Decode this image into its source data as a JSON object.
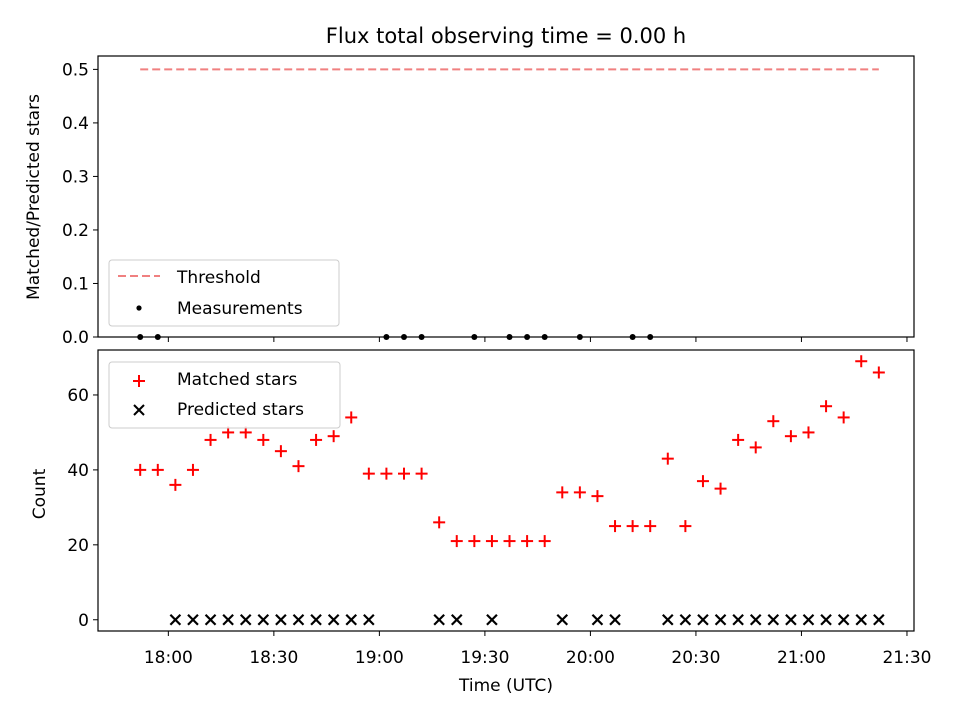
{
  "colors": {
    "threshold": "#f08080",
    "measurement": "#000000",
    "matched": "#ff0000",
    "predicted": "#000000"
  },
  "chart_data": [
    {
      "type": "scatter",
      "title": "Flux total observing time = 0.00 h",
      "xlabel": "",
      "ylabel": "Matched/Predicted stars",
      "ylim": [
        0,
        0.525
      ],
      "yticks": [
        "0.0",
        "0.1",
        "0.2",
        "0.3",
        "0.4",
        "0.5"
      ],
      "grid": false,
      "legend": "lower-left",
      "threshold": {
        "name": "Threshold",
        "y": 0.5,
        "x_start": "17:52",
        "x_end": "21:22"
      },
      "series": [
        {
          "name": "Measurements",
          "x": [
            "17:52",
            "17:57",
            "19:02",
            "19:07",
            "19:12",
            "19:27",
            "19:37",
            "19:42",
            "19:47",
            "19:57",
            "20:12",
            "20:17"
          ],
          "y": [
            0,
            0,
            0,
            0,
            0,
            0,
            0,
            0,
            0,
            0,
            0,
            0
          ]
        }
      ]
    },
    {
      "type": "scatter",
      "title": "",
      "xlabel": "Time (UTC)",
      "ylabel": "Count",
      "xlim": [
        "17:40",
        "21:32"
      ],
      "xticks": [
        "18:00",
        "18:30",
        "19:00",
        "19:30",
        "20:00",
        "20:30",
        "21:00",
        "21:30"
      ],
      "ylim": [
        -3,
        72
      ],
      "yticks": [
        "0",
        "20",
        "40",
        "60"
      ],
      "grid": false,
      "legend": "upper-left",
      "series": [
        {
          "name": "Matched stars",
          "x": [
            "17:52",
            "17:57",
            "18:02",
            "18:07",
            "18:12",
            "18:17",
            "18:22",
            "18:27",
            "18:32",
            "18:37",
            "18:42",
            "18:47",
            "18:52",
            "18:57",
            "19:02",
            "19:07",
            "19:12",
            "19:17",
            "19:22",
            "19:27",
            "19:32",
            "19:37",
            "19:42",
            "19:47",
            "19:52",
            "19:57",
            "20:02",
            "20:07",
            "20:12",
            "20:17",
            "20:22",
            "20:27",
            "20:32",
            "20:37",
            "20:42",
            "20:47",
            "20:52",
            "20:57",
            "21:02",
            "21:07",
            "21:12",
            "21:17",
            "21:22"
          ],
          "y": [
            40,
            40,
            36,
            40,
            48,
            50,
            50,
            48,
            45,
            41,
            48,
            49,
            54,
            39,
            39,
            39,
            39,
            26,
            21,
            21,
            21,
            21,
            21,
            21,
            34,
            34,
            33,
            25,
            25,
            25,
            43,
            25,
            37,
            35,
            48,
            46,
            53,
            49,
            50,
            57,
            54,
            69,
            66
          ]
        },
        {
          "name": "Predicted stars",
          "x": [
            "18:02",
            "18:07",
            "18:12",
            "18:17",
            "18:22",
            "18:27",
            "18:32",
            "18:37",
            "18:42",
            "18:47",
            "18:52",
            "18:57",
            "19:17",
            "19:22",
            "19:32",
            "19:52",
            "20:02",
            "20:07",
            "20:22",
            "20:27",
            "20:32",
            "20:37",
            "20:42",
            "20:47",
            "20:52",
            "20:57",
            "21:02",
            "21:07",
            "21:12",
            "21:17",
            "21:22"
          ],
          "y": [
            0,
            0,
            0,
            0,
            0,
            0,
            0,
            0,
            0,
            0,
            0,
            0,
            0,
            0,
            0,
            0,
            0,
            0,
            0,
            0,
            0,
            0,
            0,
            0,
            0,
            0,
            0,
            0,
            0,
            0,
            0
          ]
        }
      ]
    }
  ]
}
